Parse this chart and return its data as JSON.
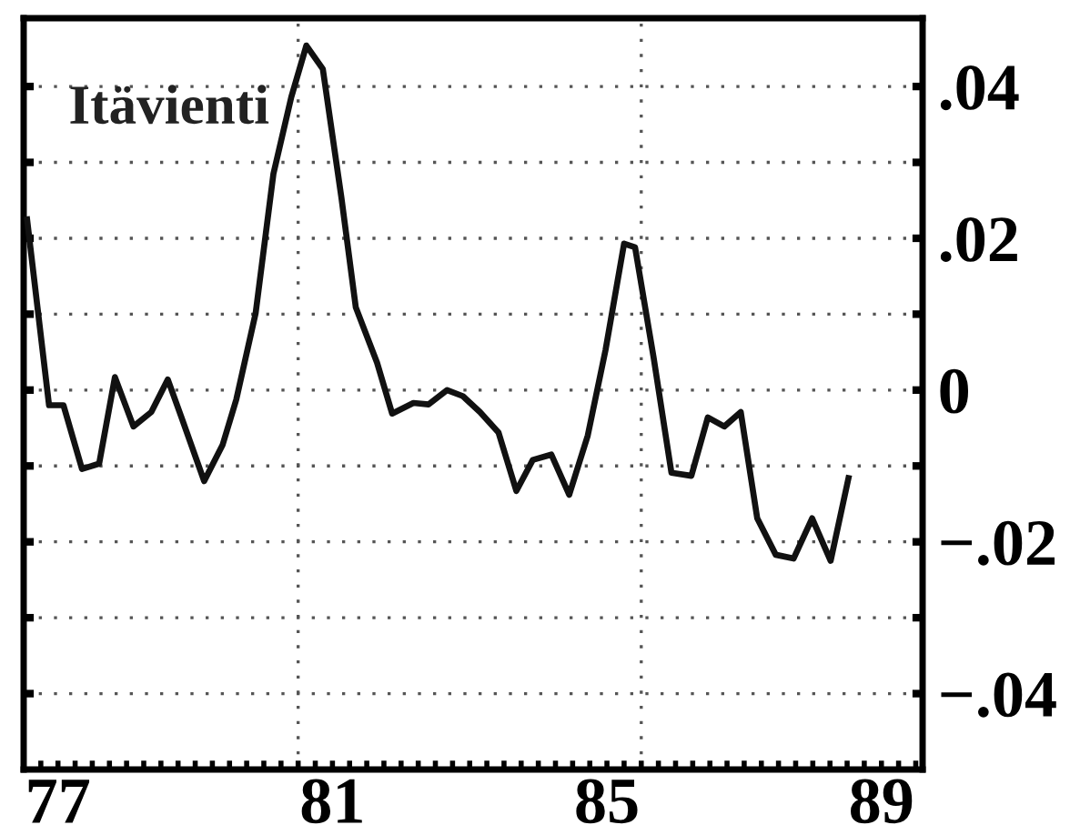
{
  "chart_data": {
    "type": "line",
    "title": "Itävienti",
    "x": [
      76.55,
      76.87,
      77.08,
      77.35,
      77.6,
      77.83,
      78.1,
      78.36,
      78.6,
      78.8,
      79.13,
      79.4,
      79.6,
      79.88,
      80.14,
      80.4,
      80.62,
      80.86,
      81.13,
      81.34,
      81.65,
      81.87,
      82.18,
      82.4,
      82.67,
      82.9,
      83.15,
      83.42,
      83.68,
      83.92,
      84.19,
      84.45,
      84.72,
      84.98,
      85.25,
      85.41,
      85.68,
      85.94,
      86.23,
      86.47,
      86.71,
      86.95,
      87.19,
      87.46,
      87.72,
      87.99,
      88.26,
      88.52
    ],
    "series": [
      {
        "color": "#111111",
        "values": [
          0.0225,
          -0.002,
          -0.002,
          -0.0104,
          -0.0097,
          0.0017,
          -0.0048,
          -0.0029,
          0.0014,
          -0.0036,
          -0.012,
          -0.0072,
          -0.0012,
          0.0101,
          0.0285,
          0.0386,
          0.0454,
          0.0423,
          0.0254,
          0.0109,
          0.0036,
          -0.0031,
          -0.0017,
          -0.0019,
          0.0,
          -0.0008,
          -0.0029,
          -0.0056,
          -0.0133,
          -0.0092,
          -0.0085,
          -0.0138,
          -0.006,
          0.0053,
          0.0193,
          0.0188,
          0.0043,
          -0.0109,
          -0.0113,
          -0.0036,
          -0.0048,
          -0.0029,
          -0.0169,
          -0.0217,
          -0.0222,
          -0.0169,
          -0.0225,
          -0.0116
        ]
      }
    ],
    "xlim": [
      76.5,
      89.6
    ],
    "xticks": [
      {
        "value": 76.5,
        "label": null
      },
      {
        "value": 76.75,
        "label": null
      },
      77,
      {
        "value": 77.25,
        "label": null
      },
      {
        "value": 77.5,
        "label": null
      },
      {
        "value": 77.75,
        "label": null
      },
      {
        "value": 78,
        "label": null
      },
      {
        "value": 78.25,
        "label": null
      },
      {
        "value": 78.5,
        "label": null
      },
      {
        "value": 78.75,
        "label": null
      },
      {
        "value": 79,
        "label": null
      },
      {
        "value": 79.25,
        "label": null
      },
      {
        "value": 79.5,
        "label": null
      },
      {
        "value": 79.75,
        "label": null
      },
      {
        "value": 80,
        "label": null
      },
      {
        "value": 80.25,
        "label": null
      },
      {
        "value": 80.5,
        "label": null
      },
      {
        "value": 80.75,
        "label": null
      },
      81,
      {
        "value": 81.25,
        "label": null
      },
      {
        "value": 81.5,
        "label": null
      },
      {
        "value": 81.75,
        "label": null
      },
      {
        "value": 82,
        "label": null
      },
      {
        "value": 82.25,
        "label": null
      },
      {
        "value": 82.5,
        "label": null
      },
      {
        "value": 82.75,
        "label": null
      },
      {
        "value": 83,
        "label": null
      },
      {
        "value": 83.25,
        "label": null
      },
      {
        "value": 83.5,
        "label": null
      },
      {
        "value": 83.75,
        "label": null
      },
      {
        "value": 84,
        "label": null
      },
      {
        "value": 84.25,
        "label": null
      },
      {
        "value": 84.5,
        "label": null
      },
      {
        "value": 84.75,
        "label": null
      },
      85,
      {
        "value": 85.25,
        "label": null
      },
      {
        "value": 85.5,
        "label": null
      },
      {
        "value": 85.75,
        "label": null
      },
      {
        "value": 86,
        "label": null
      },
      {
        "value": 86.25,
        "label": null
      },
      {
        "value": 86.5,
        "label": null
      },
      {
        "value": 86.75,
        "label": null
      },
      {
        "value": 87,
        "label": null
      },
      {
        "value": 87.25,
        "label": null
      },
      {
        "value": 87.5,
        "label": null
      },
      {
        "value": 87.75,
        "label": null
      },
      {
        "value": 88,
        "label": null
      },
      {
        "value": 88.25,
        "label": null
      },
      {
        "value": 88.5,
        "label": null
      },
      {
        "value": 88.75,
        "label": null
      },
      89,
      {
        "value": 89.25,
        "label": null
      },
      {
        "value": 89.5,
        "label": null
      }
    ],
    "ylim": [
      -0.05,
      0.049
    ],
    "yticks": [
      {
        "value": -0.04,
        "label": "−.04"
      },
      {
        "value": -0.03,
        "label": null
      },
      {
        "value": -0.02,
        "label": "−.02"
      },
      {
        "value": -0.01,
        "label": null
      },
      {
        "value": 0,
        "label": "0"
      },
      {
        "value": 0.01,
        "label": null
      },
      {
        "value": 0.02,
        "label": ".02"
      },
      {
        "value": 0.03,
        "label": null
      },
      {
        "value": 0.04,
        "label": ".04"
      }
    ],
    "ref_lines": [
      {
        "axis": "x",
        "value": 80.5,
        "line_style": "dotted",
        "color": "#555555"
      },
      {
        "axis": "x",
        "value": 85.5,
        "line_style": "dotted",
        "color": "#555555"
      }
    ],
    "grid": "y",
    "line_style": "solid",
    "marker": "none"
  }
}
